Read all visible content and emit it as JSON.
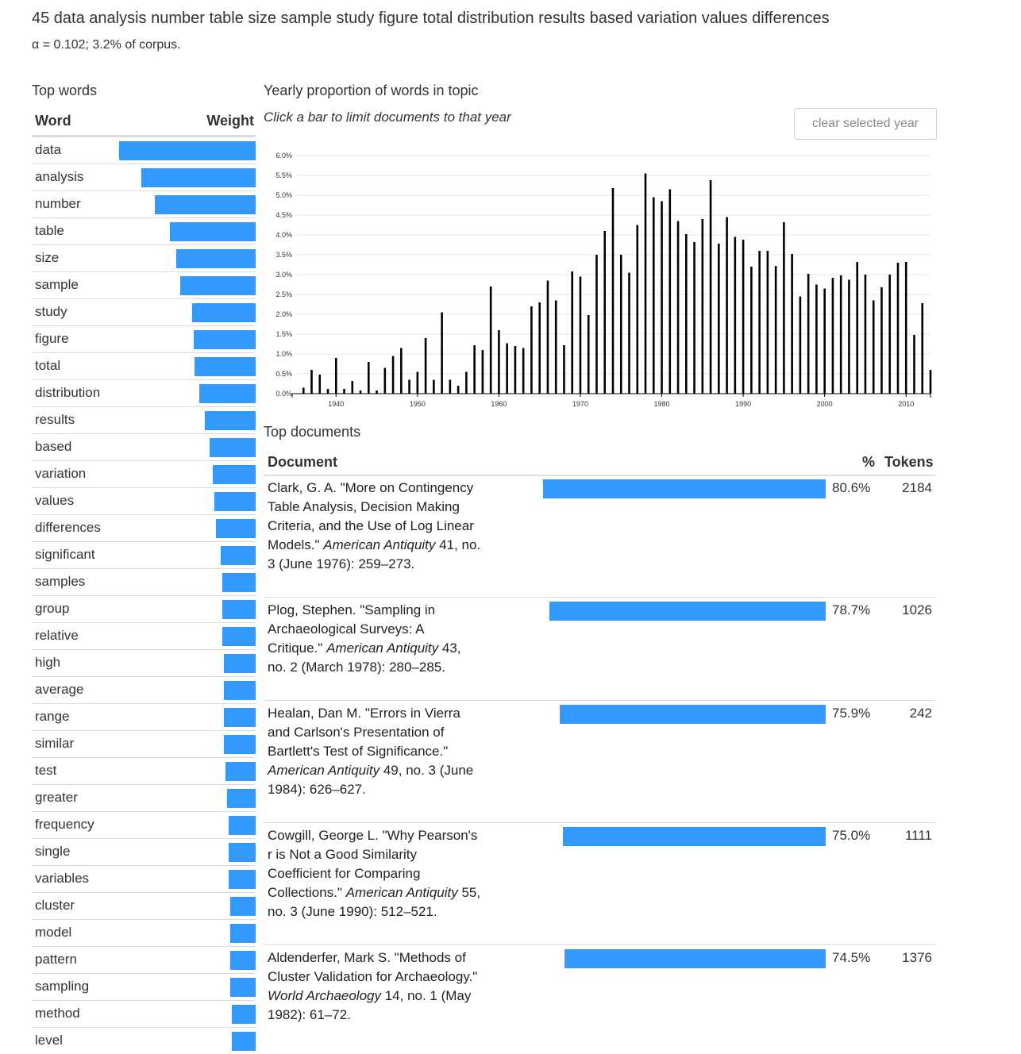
{
  "title": "45 data analysis number table size sample study figure total distribution results based variation values differences",
  "subtitle": "α = 0.102; 3.2% of corpus.",
  "words": {
    "heading": "Top words",
    "col_word": "Word",
    "col_weight": "Weight",
    "items": [
      {
        "word": "data",
        "weight": 1.0
      },
      {
        "word": "analysis",
        "weight": 0.84
      },
      {
        "word": "number",
        "weight": 0.74
      },
      {
        "word": "table",
        "weight": 0.63
      },
      {
        "word": "size",
        "weight": 0.58
      },
      {
        "word": "sample",
        "weight": 0.55
      },
      {
        "word": "study",
        "weight": 0.465
      },
      {
        "word": "figure",
        "weight": 0.455
      },
      {
        "word": "total",
        "weight": 0.445
      },
      {
        "word": "distribution",
        "weight": 0.41
      },
      {
        "word": "results",
        "weight": 0.372
      },
      {
        "word": "based",
        "weight": 0.337
      },
      {
        "word": "variation",
        "weight": 0.314
      },
      {
        "word": "values",
        "weight": 0.302
      },
      {
        "word": "differences",
        "weight": 0.291
      },
      {
        "word": "significant",
        "weight": 0.256
      },
      {
        "word": "samples",
        "weight": 0.244
      },
      {
        "word": "group",
        "weight": 0.244
      },
      {
        "word": "relative",
        "weight": 0.244
      },
      {
        "word": "high",
        "weight": 0.233
      },
      {
        "word": "average",
        "weight": 0.233
      },
      {
        "word": "range",
        "weight": 0.233
      },
      {
        "word": "similar",
        "weight": 0.233
      },
      {
        "word": "test",
        "weight": 0.221
      },
      {
        "word": "greater",
        "weight": 0.209
      },
      {
        "word": "frequency",
        "weight": 0.198
      },
      {
        "word": "single",
        "weight": 0.198
      },
      {
        "word": "variables",
        "weight": 0.198
      },
      {
        "word": "cluster",
        "weight": 0.186
      },
      {
        "word": "model",
        "weight": 0.186
      },
      {
        "word": "pattern",
        "weight": 0.186
      },
      {
        "word": "sampling",
        "weight": 0.186
      },
      {
        "word": "method",
        "weight": 0.174
      },
      {
        "word": "level",
        "weight": 0.174
      }
    ]
  },
  "chart": {
    "heading": "Yearly proportion of words in topic",
    "hint": "Click a bar to limit documents to that year",
    "clear_label": "clear selected year"
  },
  "chart_data": {
    "type": "bar",
    "x": [
      1936,
      1937,
      1938,
      1939,
      1940,
      1941,
      1942,
      1943,
      1944,
      1945,
      1946,
      1947,
      1948,
      1949,
      1950,
      1951,
      1952,
      1953,
      1954,
      1955,
      1956,
      1957,
      1958,
      1959,
      1960,
      1961,
      1962,
      1963,
      1964,
      1965,
      1966,
      1967,
      1968,
      1969,
      1970,
      1971,
      1972,
      1973,
      1974,
      1975,
      1976,
      1977,
      1978,
      1979,
      1980,
      1981,
      1982,
      1983,
      1984,
      1985,
      1986,
      1987,
      1988,
      1989,
      1990,
      1991,
      1992,
      1993,
      1994,
      1995,
      1996,
      1997,
      1998,
      1999,
      2000,
      2001,
      2002,
      2003,
      2004,
      2005,
      2006,
      2007,
      2008,
      2009,
      2010,
      2011,
      2012,
      2013
    ],
    "values": [
      0.15,
      0.6,
      0.48,
      0.12,
      0.9,
      0.12,
      0.32,
      0.08,
      0.8,
      0.08,
      0.65,
      0.95,
      1.15,
      0.35,
      0.55,
      1.4,
      0.35,
      2.05,
      0.35,
      0.2,
      0.55,
      1.22,
      1.1,
      2.7,
      1.6,
      1.27,
      1.2,
      1.15,
      2.2,
      2.3,
      2.85,
      2.35,
      1.22,
      3.08,
      2.95,
      1.98,
      3.5,
      4.1,
      5.18,
      3.5,
      3.05,
      4.25,
      5.55,
      4.95,
      4.85,
      5.15,
      4.35,
      4.02,
      3.82,
      4.4,
      5.38,
      3.78,
      4.45,
      3.95,
      3.88,
      3.2,
      3.6,
      3.6,
      3.22,
      4.32,
      3.52,
      2.45,
      3.02,
      2.75,
      2.65,
      2.92,
      2.98,
      2.87,
      3.32,
      3.0,
      2.35,
      2.68,
      3.0,
      3.3,
      3.32,
      1.48,
      2.28,
      0.6
    ],
    "ylim": [
      0,
      6
    ],
    "y_ticks": [
      "0.0%",
      "0.5%",
      "1.0%",
      "1.5%",
      "2.0%",
      "2.5%",
      "3.0%",
      "3.5%",
      "4.0%",
      "4.5%",
      "5.0%",
      "5.5%",
      "6.0%"
    ],
    "x_ticks": [
      1940,
      1950,
      1960,
      1970,
      1980,
      1990,
      2000,
      2010
    ],
    "x_tick_labels": [
      "1940",
      "1950",
      "1960",
      "1970",
      "1980",
      "1990",
      "2000",
      "2010"
    ],
    "grid": true,
    "bar_color": "#000000"
  },
  "docs": {
    "heading": "Top documents",
    "col_doc": "Document",
    "col_pct": "%",
    "col_tokens": "Tokens",
    "items": [
      {
        "pre": "Clark, G. A. \"More on Contingency Table Analysis, Decision Making Criteria, and the Use of Log Linear Models.\" ",
        "journal": "American Antiquity",
        "post": " 41, no. 3 (June 1976): 259–273.",
        "pct_value": 80.6,
        "pct": "80.6%",
        "tokens": "2184"
      },
      {
        "pre": "Plog, Stephen. \"Sampling in Archaeological Surveys: A Critique.\" ",
        "journal": "American Antiquity",
        "post": " 43, no. 2 (March 1978): 280–285.",
        "pct_value": 78.7,
        "pct": "78.7%",
        "tokens": "1026"
      },
      {
        "pre": "Healan, Dan M. \"Errors in Vierra and Carlson's Presentation of Bartlett's Test of Significance.\" ",
        "journal": "American Antiquity",
        "post": " 49, no. 3 (June 1984): 626–627.",
        "pct_value": 75.9,
        "pct": "75.9%",
        "tokens": "242"
      },
      {
        "pre": "Cowgill, George L. \"Why Pearson's r is Not a Good Similarity Coefficient for Comparing Collections.\" ",
        "journal": "American Antiquity",
        "post": " 55, no. 3 (June 1990): 512–521.",
        "pct_value": 75.0,
        "pct": "75.0%",
        "tokens": "1111"
      },
      {
        "pre": "Aldenderfer, Mark S. \"Methods of Cluster Validation for Archaeology.\" ",
        "journal": "World Archaeology",
        "post": " 14, no. 1 (May 1982): 61–72.",
        "pct_value": 74.5,
        "pct": "74.5%",
        "tokens": "1376"
      }
    ]
  }
}
